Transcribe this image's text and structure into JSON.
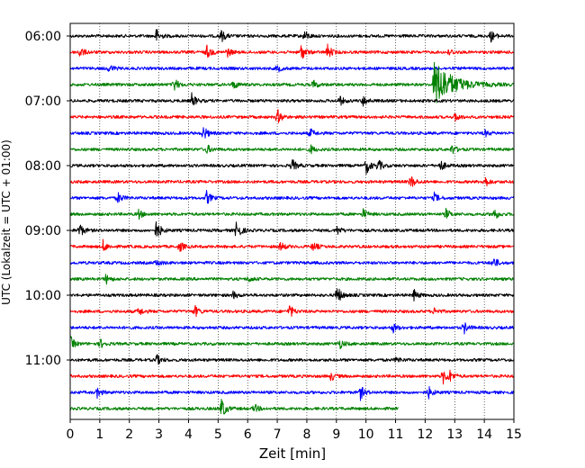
{
  "chart_data": {
    "type": "line",
    "title": "",
    "xlabel": "Zeit  [min]",
    "ylabel": "UTC (Lokalzeit = UTC + 01:00)",
    "xlim": [
      0,
      15
    ],
    "x_ticks": [
      "0",
      "1",
      "2",
      "3",
      "4",
      "5",
      "6",
      "7",
      "8",
      "9",
      "10",
      "11",
      "12",
      "13",
      "14",
      "15"
    ],
    "y_ticks": [
      "06:00",
      "07:00",
      "08:00",
      "09:00",
      "10:00",
      "11:00"
    ],
    "grid": "vertical dotted at each minute",
    "trace_interval_minutes": 15,
    "trace_colors": [
      "#000000",
      "#ff0000",
      "#0000ff",
      "#008000"
    ],
    "series": [
      {
        "start": "06:00",
        "end_min": 15,
        "color": "#000000",
        "events": [
          [
            2.9,
            0.6
          ],
          [
            5.1,
            0.5
          ],
          [
            7.9,
            0.5
          ],
          [
            14.2,
            0.5
          ]
        ]
      },
      {
        "start": "06:15",
        "end_min": 15,
        "color": "#ff0000",
        "events": [
          [
            0.3,
            0.5
          ],
          [
            4.6,
            0.6
          ],
          [
            5.3,
            0.4
          ],
          [
            7.8,
            0.7
          ],
          [
            8.7,
            0.6
          ],
          [
            12.8,
            0.3
          ]
        ]
      },
      {
        "start": "06:30",
        "end_min": 15,
        "color": "#0000ff",
        "events": [
          [
            1.3,
            0.4
          ],
          [
            7.0,
            0.3
          ]
        ]
      },
      {
        "start": "06:45",
        "end_min": 15,
        "color": "#008000",
        "events": [
          [
            3.5,
            0.6
          ],
          [
            5.5,
            0.4
          ],
          [
            8.2,
            0.4
          ],
          [
            12.3,
            2.0
          ]
        ]
      },
      {
        "start": "07:00",
        "end_min": 15,
        "color": "#000000",
        "events": [
          [
            4.1,
            0.6
          ],
          [
            9.1,
            0.4
          ],
          [
            9.9,
            0.4
          ]
        ]
      },
      {
        "start": "07:15",
        "end_min": 15,
        "color": "#ff0000",
        "events": [
          [
            7.0,
            0.6
          ],
          [
            13.0,
            0.4
          ]
        ]
      },
      {
        "start": "07:30",
        "end_min": 15,
        "color": "#0000ff",
        "events": [
          [
            4.5,
            0.6
          ],
          [
            8.1,
            0.4
          ],
          [
            14.0,
            0.3
          ]
        ]
      },
      {
        "start": "07:45",
        "end_min": 15,
        "color": "#008000",
        "events": [
          [
            4.6,
            0.4
          ],
          [
            8.1,
            0.4
          ],
          [
            12.9,
            0.4
          ]
        ]
      },
      {
        "start": "08:00",
        "end_min": 15,
        "color": "#000000",
        "events": [
          [
            7.5,
            0.5
          ],
          [
            10.0,
            0.7
          ],
          [
            10.4,
            0.5
          ],
          [
            12.5,
            0.5
          ]
        ]
      },
      {
        "start": "08:15",
        "end_min": 15,
        "color": "#ff0000",
        "events": [
          [
            11.5,
            0.6
          ],
          [
            14.0,
            0.5
          ]
        ]
      },
      {
        "start": "08:30",
        "end_min": 15,
        "color": "#0000ff",
        "events": [
          [
            1.6,
            0.5
          ],
          [
            4.6,
            0.6
          ],
          [
            12.3,
            0.4
          ]
        ]
      },
      {
        "start": "08:45",
        "end_min": 15,
        "color": "#008000",
        "events": [
          [
            2.3,
            0.4
          ],
          [
            9.9,
            0.4
          ],
          [
            12.7,
            0.4
          ],
          [
            14.3,
            0.6
          ]
        ]
      },
      {
        "start": "09:00",
        "end_min": 15,
        "color": "#000000",
        "events": [
          [
            0.3,
            0.6
          ],
          [
            2.9,
            0.9
          ],
          [
            5.6,
            1.0
          ],
          [
            9.0,
            0.4
          ]
        ]
      },
      {
        "start": "09:15",
        "end_min": 15,
        "color": "#ff0000",
        "events": [
          [
            1.1,
            0.5
          ],
          [
            3.7,
            0.4
          ],
          [
            7.1,
            0.4
          ],
          [
            8.2,
            0.4
          ]
        ]
      },
      {
        "start": "09:30",
        "end_min": 15,
        "color": "#0000ff",
        "events": [
          [
            2.9,
            0.3
          ],
          [
            14.3,
            0.5
          ]
        ]
      },
      {
        "start": "09:45",
        "end_min": 15,
        "color": "#008000",
        "events": [
          [
            1.2,
            0.4
          ],
          [
            6.0,
            0.3
          ]
        ]
      },
      {
        "start": "10:00",
        "end_min": 15,
        "color": "#000000",
        "events": [
          [
            5.5,
            0.3
          ],
          [
            9.0,
            0.9
          ],
          [
            11.6,
            0.5
          ]
        ]
      },
      {
        "start": "10:15",
        "end_min": 15,
        "color": "#ff0000",
        "events": [
          [
            2.3,
            0.4
          ],
          [
            4.2,
            0.5
          ],
          [
            7.4,
            0.6
          ],
          [
            12.3,
            0.3
          ]
        ]
      },
      {
        "start": "10:30",
        "end_min": 15,
        "color": "#0000ff",
        "events": [
          [
            10.9,
            0.4
          ],
          [
            13.3,
            0.5
          ]
        ]
      },
      {
        "start": "10:45",
        "end_min": 15,
        "color": "#008000",
        "events": [
          [
            0.0,
            0.6
          ],
          [
            1.0,
            0.4
          ],
          [
            9.1,
            0.4
          ]
        ]
      },
      {
        "start": "11:00",
        "end_min": 15,
        "color": "#000000",
        "events": [
          [
            2.9,
            0.5
          ],
          [
            11.0,
            0.3
          ]
        ]
      },
      {
        "start": "11:15",
        "end_min": 15,
        "color": "#ff0000",
        "events": [
          [
            8.8,
            0.4
          ],
          [
            12.6,
            0.6
          ],
          [
            12.8,
            0.5
          ]
        ]
      },
      {
        "start": "11:30",
        "end_min": 15,
        "color": "#0000ff",
        "events": [
          [
            0.9,
            0.4
          ],
          [
            9.8,
            0.6
          ],
          [
            12.1,
            0.5
          ]
        ]
      },
      {
        "start": "11:45",
        "end_min": 11.1,
        "color": "#008000",
        "events": [
          [
            5.1,
            1.0
          ],
          [
            6.2,
            0.4
          ]
        ]
      }
    ]
  }
}
